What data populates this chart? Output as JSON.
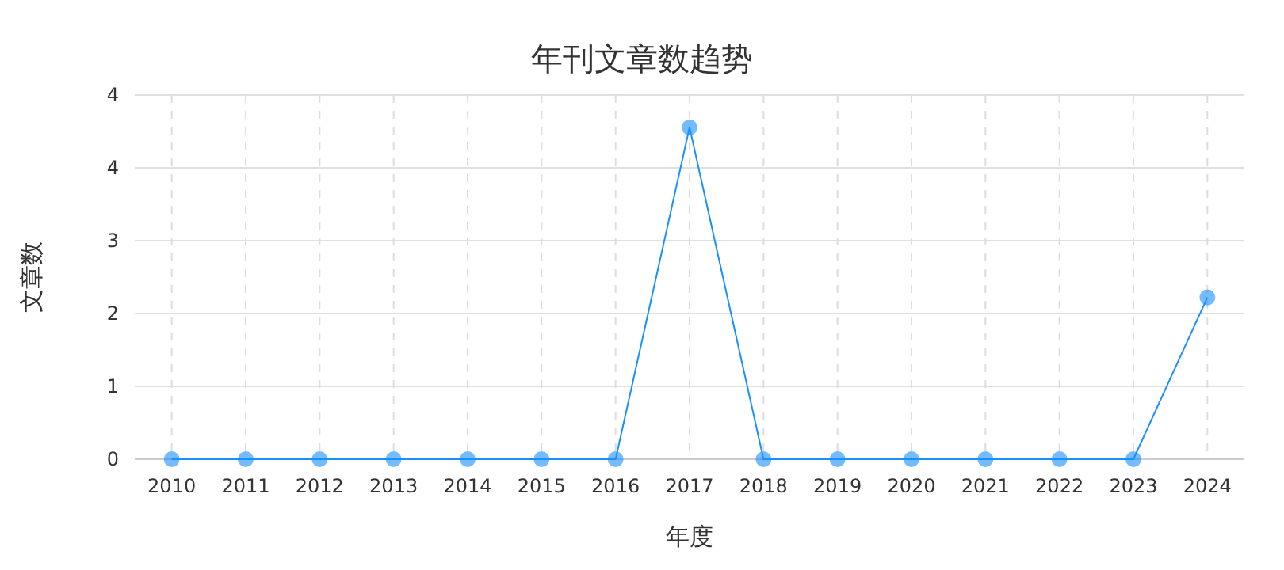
{
  "chart_data": {
    "type": "line",
    "title": "年刊文章数趋势",
    "xlabel": "年度",
    "ylabel": "文章数",
    "categories": [
      "2010",
      "2011",
      "2012",
      "2013",
      "2014",
      "2015",
      "2016",
      "2017",
      "2018",
      "2019",
      "2020",
      "2021",
      "2022",
      "2023",
      "2024"
    ],
    "series": [
      {
        "color": "#1890ff",
        "values": [
          0,
          0,
          0,
          0,
          0,
          0,
          0,
          4.1,
          0,
          0,
          0,
          0,
          0,
          0,
          2.0
        ]
      }
    ],
    "ylim": [
      0,
      4.5
    ],
    "yticks": [
      0,
      {
        "value": 0.9,
        "label": "1"
      },
      {
        "value": 1.8,
        "label": "2"
      },
      {
        "value": 2.7,
        "label": "3"
      },
      {
        "value": 3.6,
        "label": "4"
      },
      {
        "value": 4.5,
        "label": "4"
      }
    ],
    "grid": true,
    "marker": "circle",
    "line_style": "solid"
  }
}
